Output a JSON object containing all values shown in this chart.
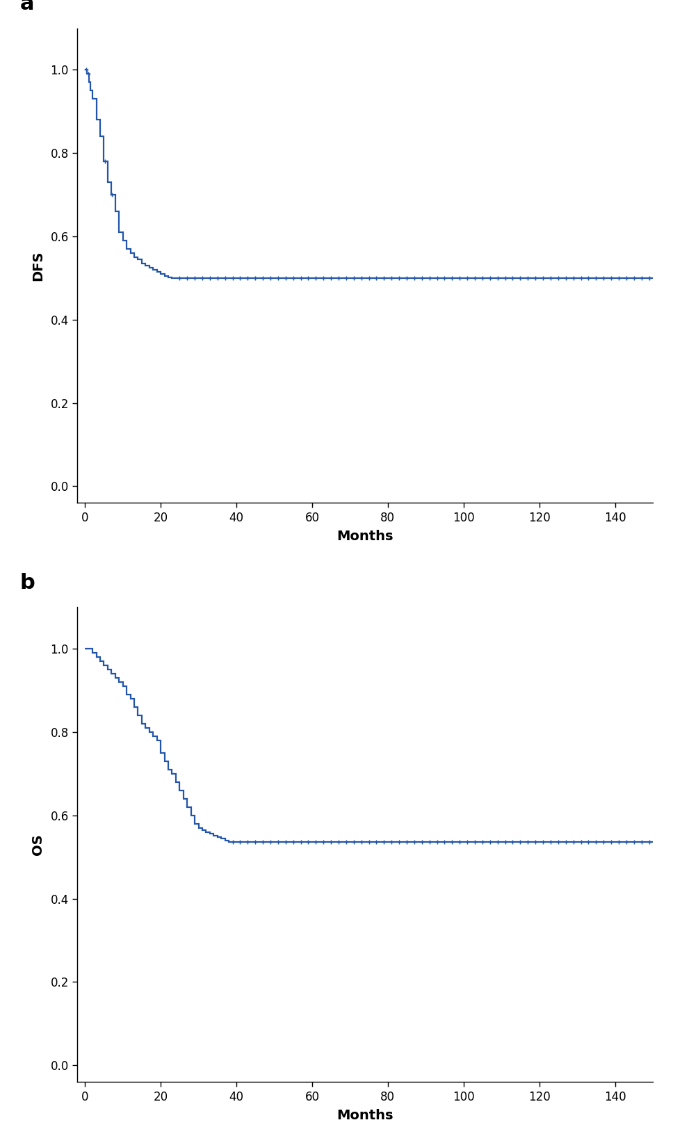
{
  "color": "#2255aa",
  "line_width": 1.6,
  "background_color": "#ffffff",
  "fig_width": 9.68,
  "fig_height": 16.21,
  "dpi": 100,
  "dfs_ylabel": "DFS",
  "os_ylabel": "OS",
  "xlabel": "Months",
  "label_a": "a",
  "label_b": "b",
  "xlim": [
    -2,
    150
  ],
  "ylim": [
    -0.04,
    1.1
  ],
  "xticks": [
    0,
    20,
    40,
    60,
    80,
    100,
    120,
    140
  ],
  "yticks": [
    0.0,
    0.2,
    0.4,
    0.6,
    0.8,
    1.0
  ],
  "dfs_steps_t": [
    0,
    0.5,
    1,
    1.5,
    2,
    3,
    4,
    5,
    6,
    7,
    8,
    9,
    10,
    11,
    12,
    13,
    14,
    15,
    16,
    17,
    18,
    19,
    20,
    21,
    22,
    23,
    24,
    150
  ],
  "dfs_steps_s": [
    1.0,
    0.99,
    0.97,
    0.95,
    0.93,
    0.88,
    0.84,
    0.78,
    0.73,
    0.7,
    0.66,
    0.61,
    0.59,
    0.57,
    0.56,
    0.55,
    0.545,
    0.535,
    0.53,
    0.525,
    0.52,
    0.515,
    0.51,
    0.505,
    0.502,
    0.5,
    0.5,
    0.5
  ],
  "dfs_censors": [
    0.3,
    0.8,
    5.2,
    7.2,
    25,
    27,
    29,
    31,
    33,
    35,
    37,
    39,
    41,
    43,
    45,
    47,
    49,
    51,
    53,
    55,
    57,
    59,
    61,
    63,
    65,
    67,
    69,
    71,
    73,
    75,
    77,
    79,
    81,
    83,
    85,
    87,
    89,
    91,
    93,
    95,
    97,
    99,
    101,
    103,
    105,
    107,
    109,
    111,
    113,
    115,
    117,
    119,
    121,
    123,
    125,
    127,
    129,
    131,
    133,
    135,
    137,
    139,
    141,
    143,
    145,
    147,
    149
  ],
  "os_steps_t": [
    0,
    1,
    2,
    3,
    4,
    5,
    6,
    7,
    8,
    9,
    10,
    11,
    12,
    13,
    14,
    15,
    16,
    17,
    18,
    19,
    20,
    21,
    22,
    23,
    24,
    25,
    26,
    27,
    28,
    29,
    30,
    31,
    32,
    33,
    34,
    35,
    36,
    37,
    38,
    150
  ],
  "os_steps_s": [
    1.0,
    1.0,
    0.99,
    0.98,
    0.97,
    0.96,
    0.95,
    0.94,
    0.93,
    0.92,
    0.91,
    0.89,
    0.88,
    0.86,
    0.84,
    0.82,
    0.81,
    0.8,
    0.79,
    0.78,
    0.75,
    0.73,
    0.71,
    0.7,
    0.68,
    0.66,
    0.64,
    0.62,
    0.6,
    0.58,
    0.57,
    0.565,
    0.56,
    0.556,
    0.552,
    0.548,
    0.544,
    0.54,
    0.536,
    0.536
  ],
  "os_censors": [
    39,
    41,
    43,
    45,
    47,
    49,
    51,
    53,
    55,
    57,
    59,
    61,
    63,
    65,
    67,
    69,
    71,
    73,
    75,
    77,
    79,
    81,
    83,
    85,
    87,
    89,
    91,
    93,
    95,
    97,
    99,
    101,
    103,
    105,
    107,
    109,
    111,
    113,
    115,
    117,
    119,
    121,
    123,
    125,
    127,
    129,
    131,
    133,
    135,
    137,
    139,
    141,
    143,
    145,
    147,
    149
  ]
}
